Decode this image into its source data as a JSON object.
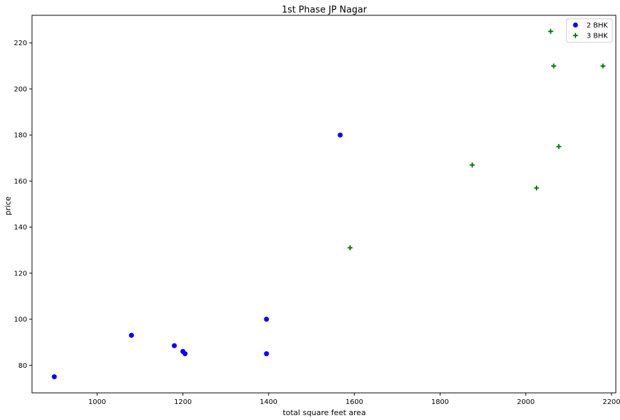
{
  "chart_data": {
    "type": "scatter",
    "title": "1st Phase JP Nagar",
    "xlabel": "total square feet area",
    "ylabel": "price",
    "xlim": [
      848,
      2210
    ],
    "ylim": [
      68,
      232
    ],
    "xticks": [
      1000,
      1200,
      1400,
      1600,
      1800,
      2000,
      2200
    ],
    "yticks": [
      80,
      100,
      120,
      140,
      160,
      180,
      200,
      220
    ],
    "grid": false,
    "legend_position": "top-right",
    "series": [
      {
        "name": "2 BHK",
        "marker": "circle",
        "color": "#0000ff",
        "points": [
          {
            "x": 900,
            "y": 75
          },
          {
            "x": 1080,
            "y": 93
          },
          {
            "x": 1180,
            "y": 88.5
          },
          {
            "x": 1200,
            "y": 86
          },
          {
            "x": 1205,
            "y": 85
          },
          {
            "x": 1395,
            "y": 100
          },
          {
            "x": 1395,
            "y": 85
          },
          {
            "x": 1567,
            "y": 180
          }
        ]
      },
      {
        "name": "3 BHK",
        "marker": "plus",
        "color": "#008000",
        "points": [
          {
            "x": 1590,
            "y": 131
          },
          {
            "x": 1875,
            "y": 167
          },
          {
            "x": 2025,
            "y": 157
          },
          {
            "x": 2058,
            "y": 225
          },
          {
            "x": 2065,
            "y": 210
          },
          {
            "x": 2077,
            "y": 175
          },
          {
            "x": 2180,
            "y": 210
          }
        ]
      }
    ]
  }
}
